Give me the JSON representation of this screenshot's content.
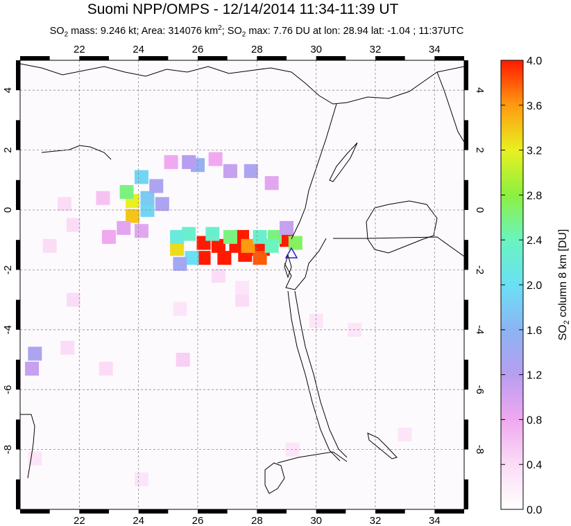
{
  "header": {
    "title": "Suomi NPP/OMPS - 12/14/2014 11:34-11:39 UT",
    "subtitle_prefix": "SO",
    "subtitle_text1": " mass: 9.246 kt; Area: 314076 km",
    "subtitle_text2": "; SO",
    "subtitle_text3": " max: 7.76 DU at lon: 28.94 lat: -1.04 ; 11:37UTC",
    "sub2": "2",
    "sup2": "2"
  },
  "colorbar": {
    "label": "SO2 column 8 km [DU]",
    "label_pre": "SO",
    "label_sub": "2",
    "label_post": " column 8 km [DU]",
    "ticks": [
      "0.0",
      "0.4",
      "0.8",
      "1.2",
      "1.6",
      "2.0",
      "2.4",
      "2.8",
      "3.2",
      "3.6",
      "4.0"
    ],
    "colors": [
      "#ffffff",
      "#fbdcf6",
      "#f0a8f0",
      "#b89ef0",
      "#8cb4f4",
      "#6ae0f4",
      "#6af4c0",
      "#8cf040",
      "#e8f020",
      "#ff9a10",
      "#ff1a00"
    ]
  },
  "chart_data": {
    "type": "heatmap",
    "title": "Suomi NPP/OMPS - 12/14/2014 11:34-11:39 UT",
    "xlabel": "",
    "ylabel": "",
    "xlim": [
      20,
      35
    ],
    "ylim": [
      -10,
      5
    ],
    "x_ticks": [
      "22",
      "24",
      "26",
      "28",
      "30",
      "32",
      "34"
    ],
    "y_ticks": [
      "4",
      "2",
      "0",
      "-2",
      "-4",
      "-6",
      "-8"
    ],
    "x_tick_values": [
      22,
      24,
      26,
      28,
      30,
      32,
      34
    ],
    "y_tick_values": [
      4,
      2,
      0,
      -2,
      -4,
      -6,
      -8
    ],
    "value_range": [
      0,
      4
    ],
    "volcano_marker": {
      "lon": 29.2,
      "lat": -1.5
    },
    "pixels": [
      {
        "lon": 26.7,
        "lat": -1.2,
        "value": 4.0
      },
      {
        "lon": 27.3,
        "lat": -1.2,
        "value": 4.0
      },
      {
        "lon": 27.9,
        "lat": -1.3,
        "value": 4.0
      },
      {
        "lon": 26.2,
        "lat": -1.1,
        "value": 4.0
      },
      {
        "lon": 26.9,
        "lat": -1.6,
        "value": 4.0
      },
      {
        "lon": 27.6,
        "lat": -1.5,
        "value": 4.0
      },
      {
        "lon": 28.2,
        "lat": -1.3,
        "value": 4.0
      },
      {
        "lon": 29.0,
        "lat": -1.0,
        "value": 4.0
      },
      {
        "lon": 27.5,
        "lat": -0.9,
        "value": 4.0
      },
      {
        "lon": 26.2,
        "lat": -1.6,
        "value": 4.0
      },
      {
        "lon": 28.1,
        "lat": -1.6,
        "value": 3.8
      },
      {
        "lon": 27.7,
        "lat": -1.2,
        "value": 3.6
      },
      {
        "lon": 25.3,
        "lat": -1.3,
        "value": 3.3
      },
      {
        "lon": 23.8,
        "lat": -0.2,
        "value": 3.4
      },
      {
        "lon": 23.8,
        "lat": 0.3,
        "value": 3.2
      },
      {
        "lon": 27.1,
        "lat": -0.9,
        "value": 2.6
      },
      {
        "lon": 28.6,
        "lat": -0.9,
        "value": 2.6
      },
      {
        "lon": 29.3,
        "lat": -1.1,
        "value": 2.7
      },
      {
        "lon": 23.6,
        "lat": 0.6,
        "value": 2.6
      },
      {
        "lon": 28.1,
        "lat": -0.9,
        "value": 2.3
      },
      {
        "lon": 26.5,
        "lat": -0.8,
        "value": 2.3
      },
      {
        "lon": 25.7,
        "lat": -0.8,
        "value": 2.3
      },
      {
        "lon": 25.3,
        "lat": -0.9,
        "value": 2.2
      },
      {
        "lon": 28.5,
        "lat": -1.2,
        "value": 2.4
      },
      {
        "lon": 25.8,
        "lat": -1.6,
        "value": 2.0
      },
      {
        "lon": 24.3,
        "lat": 0.0,
        "value": 1.9
      },
      {
        "lon": 24.1,
        "lat": 1.1,
        "value": 1.9
      },
      {
        "lon": 24.3,
        "lat": 0.4,
        "value": 1.8
      },
      {
        "lon": 26.0,
        "lat": 1.5,
        "value": 1.5
      },
      {
        "lon": 25.4,
        "lat": -1.8,
        "value": 1.4
      },
      {
        "lon": 27.8,
        "lat": 1.3,
        "value": 1.3
      },
      {
        "lon": 24.6,
        "lat": 0.8,
        "value": 1.3
      },
      {
        "lon": 24.8,
        "lat": 0.2,
        "value": 1.3
      },
      {
        "lon": 20.5,
        "lat": -4.8,
        "value": 1.3
      },
      {
        "lon": 20.4,
        "lat": -5.3,
        "value": 1.1
      },
      {
        "lon": 25.7,
        "lat": 1.6,
        "value": 1.2
      },
      {
        "lon": 27.1,
        "lat": 1.3,
        "value": 1.1
      },
      {
        "lon": 29.0,
        "lat": -0.6,
        "value": 1.1
      },
      {
        "lon": 23.5,
        "lat": -0.6,
        "value": 0.9
      },
      {
        "lon": 24.1,
        "lat": -0.7,
        "value": 0.9
      },
      {
        "lon": 28.5,
        "lat": 0.9,
        "value": 0.9
      },
      {
        "lon": 23.0,
        "lat": -0.9,
        "value": 0.8
      },
      {
        "lon": 25.1,
        "lat": 1.6,
        "value": 0.8
      },
      {
        "lon": 26.6,
        "lat": 1.7,
        "value": 0.8
      },
      {
        "lon": 22.8,
        "lat": 0.4,
        "value": 0.6
      },
      {
        "lon": 21.5,
        "lat": 0.2,
        "value": 0.4
      },
      {
        "lon": 21.8,
        "lat": -0.5,
        "value": 0.4
      },
      {
        "lon": 21.0,
        "lat": -1.2,
        "value": 0.4
      },
      {
        "lon": 21.8,
        "lat": -3.0,
        "value": 0.4
      },
      {
        "lon": 21.6,
        "lat": -4.6,
        "value": 0.4
      },
      {
        "lon": 22.9,
        "lat": -5.3,
        "value": 0.4
      },
      {
        "lon": 26.7,
        "lat": -2.2,
        "value": 0.4
      },
      {
        "lon": 27.5,
        "lat": -3.0,
        "value": 0.4
      },
      {
        "lon": 27.5,
        "lat": -2.6,
        "value": 0.3
      },
      {
        "lon": 25.4,
        "lat": -3.3,
        "value": 0.3
      },
      {
        "lon": 24.1,
        "lat": -9.0,
        "value": 0.3
      },
      {
        "lon": 20.5,
        "lat": -8.3,
        "value": 0.3
      },
      {
        "lon": 31.3,
        "lat": -4.0,
        "value": 0.3
      },
      {
        "lon": 33.0,
        "lat": -7.5,
        "value": 0.3
      },
      {
        "lon": 29.2,
        "lat": -8.0,
        "value": 0.3
      },
      {
        "lon": 25.5,
        "lat": -5.0,
        "value": 0.5
      },
      {
        "lon": 30.0,
        "lat": -3.7,
        "value": 0.3
      }
    ]
  }
}
